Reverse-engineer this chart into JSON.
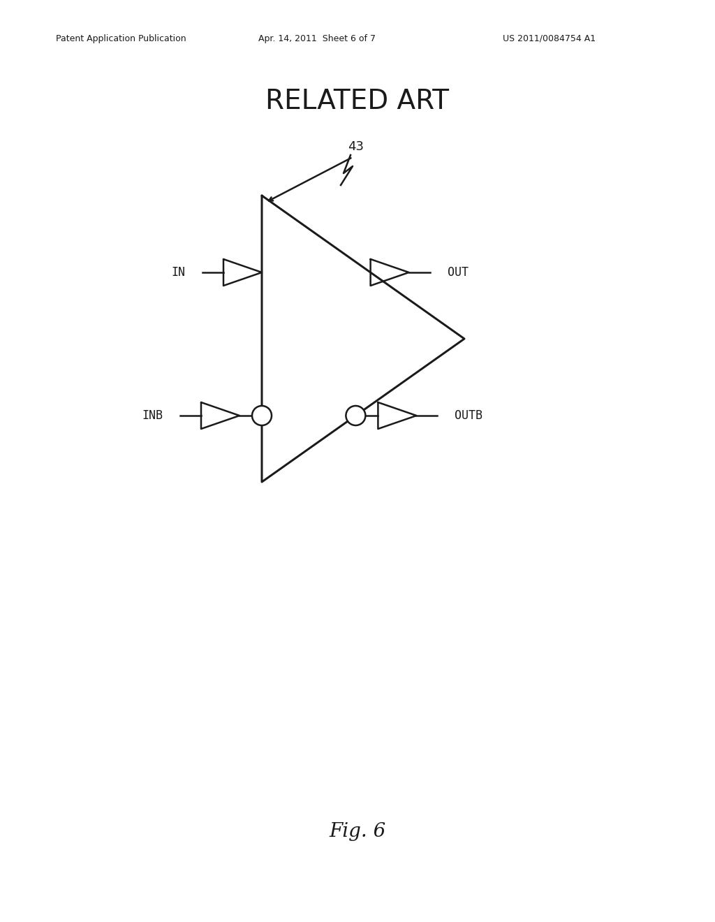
{
  "title": "RELATED ART",
  "fig_label": "Fig. 6",
  "header_left": "Patent Application Publication",
  "header_center": "Apr. 14, 2011  Sheet 6 of 7",
  "header_right": "US 2011/0084754 A1",
  "component_label": "43",
  "in_label": "IN",
  "out_label": "OUT",
  "inb_label": "INB",
  "outb_label": "OUTB",
  "bg_color": "#ffffff",
  "line_color": "#1a1a1a",
  "line_width": 1.8
}
